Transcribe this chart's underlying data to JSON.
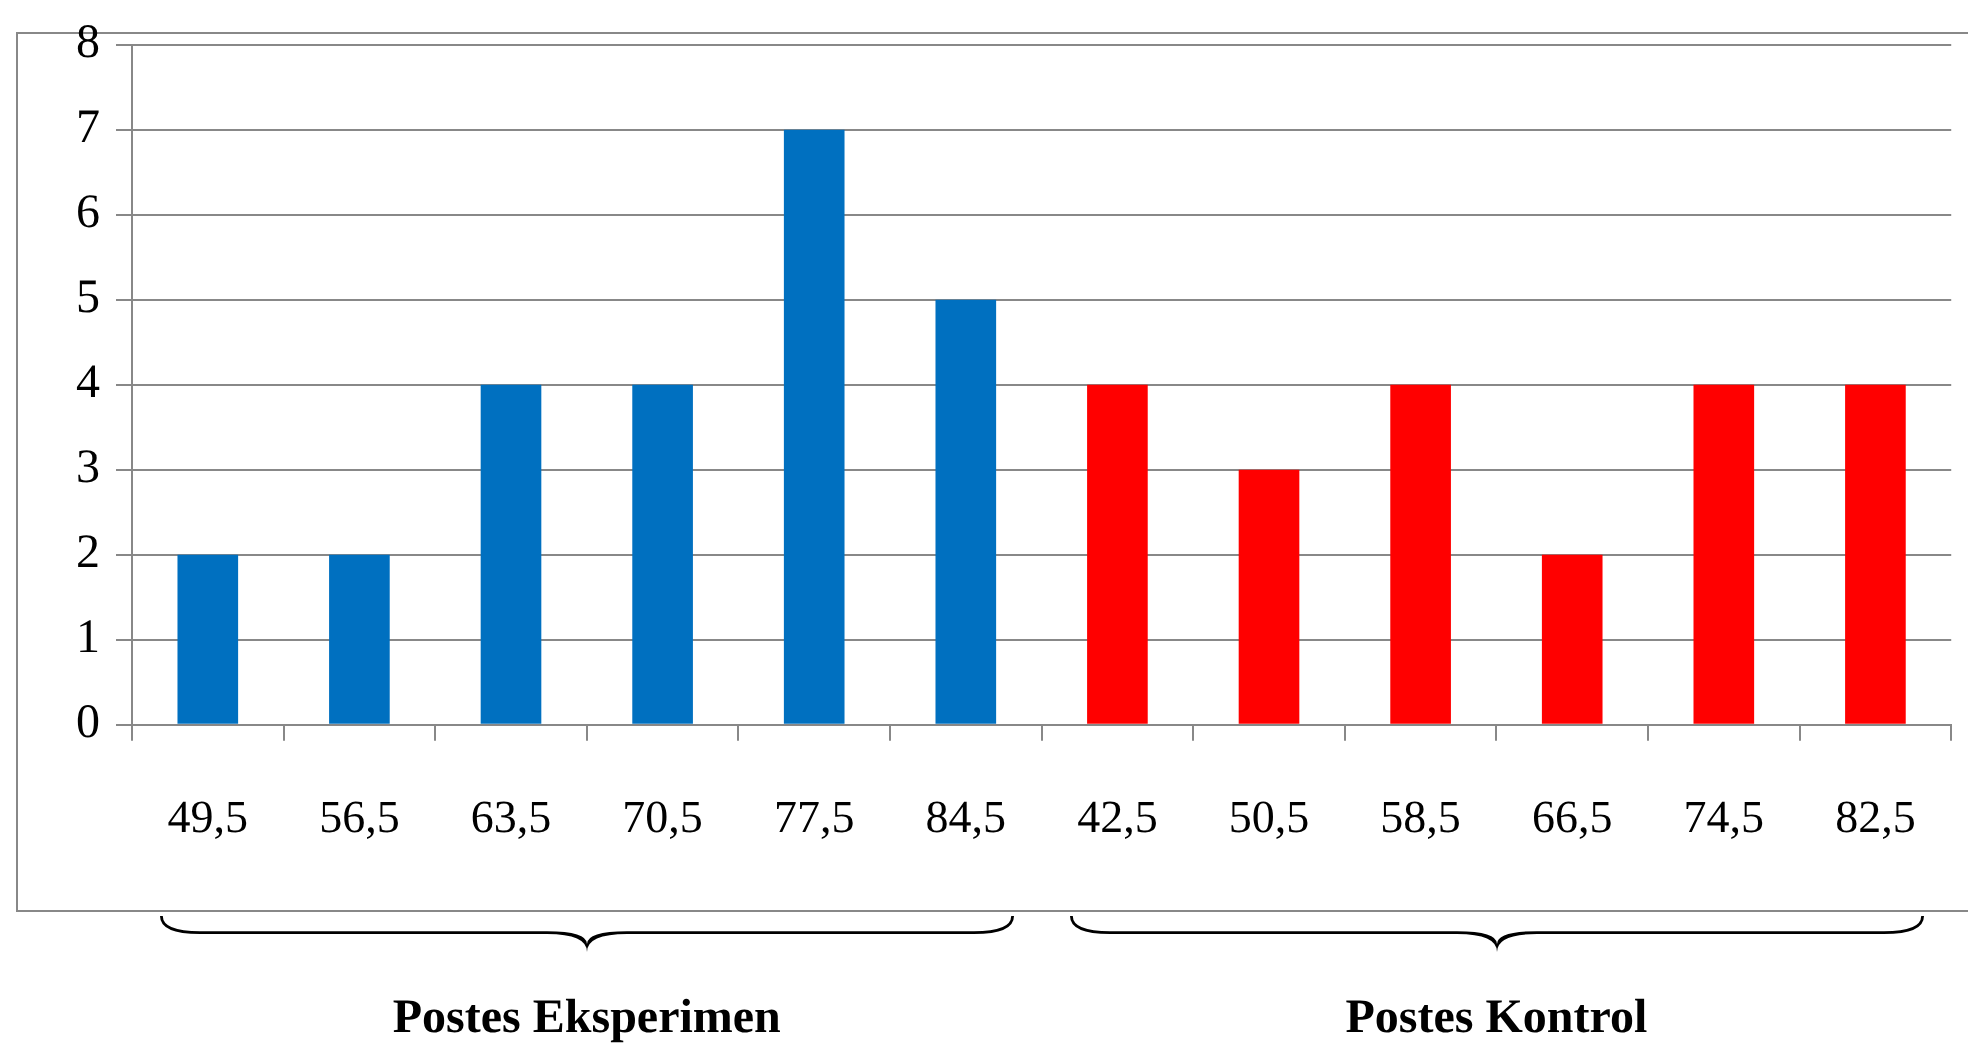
{
  "chart_data": {
    "type": "bar",
    "categories": [
      "49,5",
      "56,5",
      "63,5",
      "70,5",
      "77,5",
      "84,5",
      "42,5",
      "50,5",
      "58,5",
      "66,5",
      "74,5",
      "82,5"
    ],
    "values": [
      2,
      2,
      4,
      4,
      7,
      5,
      4,
      3,
      4,
      2,
      4,
      4
    ],
    "colors": [
      "#0070c0",
      "#0070c0",
      "#0070c0",
      "#0070c0",
      "#0070c0",
      "#0070c0",
      "#ff0000",
      "#ff0000",
      "#ff0000",
      "#ff0000",
      "#ff0000",
      "#ff0000"
    ],
    "ylim": [
      0,
      8
    ],
    "yticks": [
      0,
      1,
      2,
      3,
      4,
      5,
      6,
      7,
      8
    ],
    "grid": "y",
    "legend": false,
    "annotations": [
      "Postes Eksperimen",
      "Postes Kontrol"
    ]
  }
}
